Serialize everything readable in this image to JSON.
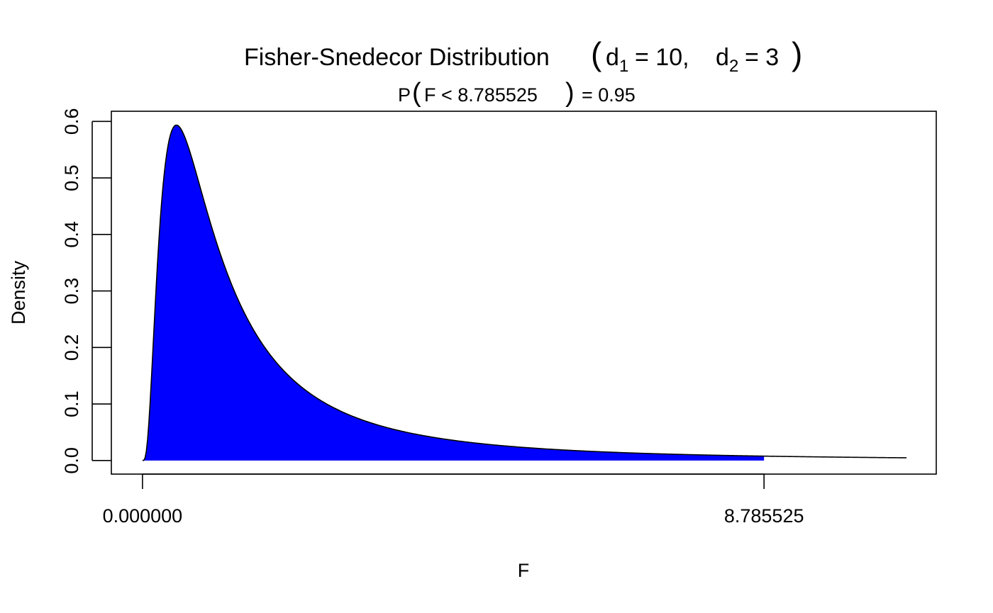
{
  "chart_data": {
    "type": "area",
    "title": {
      "prefix": "Fisher-Snedecor Distribution",
      "d1_symbol": "d",
      "d1_sub": "1",
      "d1_value": "= 10,",
      "d2_symbol": "d",
      "d2_sub": "2",
      "d2_value": "= 3",
      "open_paren": "(",
      "close_paren": ")"
    },
    "subtitle": {
      "p": "P",
      "open_paren": "(",
      "inner": "F < 8.785525",
      "close_paren": ")",
      "suffix": "= 0.95"
    },
    "xlabel": "F",
    "ylabel": "Density",
    "x_ticks": [
      {
        "value": 0,
        "label": "0.000000"
      },
      {
        "value": 8.785525,
        "label": "8.785525"
      }
    ],
    "y_ticks": [
      {
        "value": 0.0,
        "label": "0.0"
      },
      {
        "value": 0.1,
        "label": "0.1"
      },
      {
        "value": 0.2,
        "label": "0.2"
      },
      {
        "value": 0.3,
        "label": "0.3"
      },
      {
        "value": 0.4,
        "label": "0.4"
      },
      {
        "value": 0.5,
        "label": "0.5"
      },
      {
        "value": 0.6,
        "label": "0.6"
      }
    ],
    "xlim": [
      -0.44,
      11.22
    ],
    "ylim": [
      -0.024,
      0.618
    ],
    "distribution": {
      "d1": 10,
      "d2": 3
    },
    "curve_x_range": [
      0,
      10.8
    ],
    "shaded_x_range": [
      0,
      8.785525
    ],
    "probability": 0.95,
    "quantile": 8.785525,
    "fill_color": "#0000ff",
    "line_color": "#000000",
    "grid": false
  }
}
